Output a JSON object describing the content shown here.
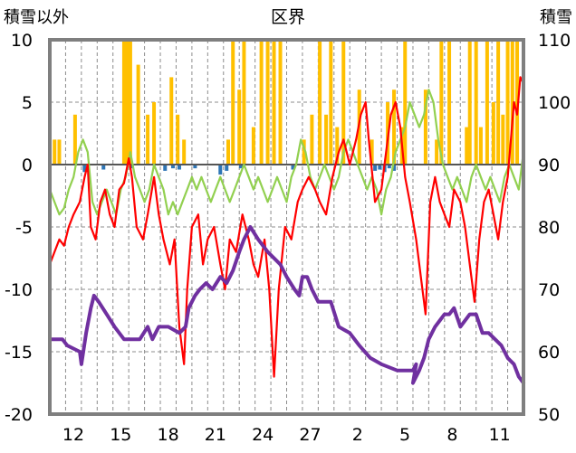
{
  "chart_data": {
    "type": "line",
    "title": "区界",
    "y_left_label": "積雪以外",
    "y_right_label": "積雪",
    "y_left_range": [
      -20,
      10
    ],
    "y_left_ticks": [
      "10",
      "5",
      "0",
      "-5",
      "-10",
      "-15",
      "-20"
    ],
    "y_right_range": [
      50,
      110
    ],
    "y_right_ticks": [
      "110",
      "100",
      "90",
      "80",
      "70",
      "60",
      "50"
    ],
    "x_range": [
      0,
      30
    ],
    "x_tick_labels": [
      "12",
      "15",
      "18",
      "21",
      "24",
      "27",
      "2",
      "5",
      "8",
      "11"
    ],
    "grid": true,
    "colors": {
      "frame": "#7f7f7f",
      "grid": "#8c8c8c",
      "precip_bar": "#ffc000",
      "negative_bar": "#2e75b6",
      "temperature_max": "#ff0000",
      "temperature_min": "#92d050",
      "snow_depth": "#7030a0"
    },
    "series": [
      {
        "key": "snow_depth",
        "axis": "right",
        "points": [
          [
            0,
            62
          ],
          [
            0.8,
            62
          ],
          [
            1.1,
            61
          ],
          [
            1.9,
            60
          ],
          [
            2,
            58
          ],
          [
            2.3,
            63
          ],
          [
            2.6,
            67
          ],
          [
            2.8,
            69
          ],
          [
            3.1,
            68
          ],
          [
            3.6,
            66
          ],
          [
            4.1,
            64
          ],
          [
            4.7,
            62
          ],
          [
            5.7,
            62
          ],
          [
            6.2,
            64
          ],
          [
            6.5,
            62
          ],
          [
            6.9,
            64
          ],
          [
            7.5,
            64
          ],
          [
            8.2,
            63
          ],
          [
            8.6,
            64
          ],
          [
            8.8,
            67
          ],
          [
            9.2,
            69
          ],
          [
            9.5,
            70
          ],
          [
            9.9,
            71
          ],
          [
            10.3,
            70
          ],
          [
            10.8,
            72
          ],
          [
            11.2,
            71
          ],
          [
            11.6,
            73
          ],
          [
            12,
            76
          ],
          [
            12.3,
            78
          ],
          [
            12.7,
            80
          ],
          [
            13.2,
            78
          ],
          [
            13.8,
            76
          ],
          [
            14.6,
            74
          ],
          [
            15,
            72
          ],
          [
            15.5,
            70
          ],
          [
            15.8,
            69
          ],
          [
            16,
            72
          ],
          [
            16.3,
            72
          ],
          [
            16.6,
            70
          ],
          [
            17,
            68
          ],
          [
            17.8,
            68
          ],
          [
            18.3,
            64
          ],
          [
            19,
            63
          ],
          [
            19.6,
            61
          ],
          [
            20.3,
            59
          ],
          [
            21,
            58
          ],
          [
            22,
            57
          ],
          [
            23,
            57
          ],
          [
            23.2,
            58
          ],
          [
            23,
            55
          ],
          [
            23.4,
            57
          ],
          [
            23.7,
            59
          ],
          [
            24,
            62
          ],
          [
            24.4,
            64
          ],
          [
            24.7,
            65
          ],
          [
            25,
            66
          ],
          [
            25.3,
            66
          ],
          [
            25.6,
            67
          ],
          [
            26,
            64
          ],
          [
            26.6,
            66
          ],
          [
            27,
            66
          ],
          [
            27.4,
            63
          ],
          [
            27.8,
            63
          ],
          [
            28.2,
            62
          ],
          [
            28.6,
            61
          ],
          [
            29,
            59
          ],
          [
            29.4,
            58
          ],
          [
            29.7,
            56
          ],
          [
            30,
            55
          ]
        ]
      },
      {
        "key": "temperature_max",
        "axis": "left",
        "points": [
          [
            0,
            -8
          ],
          [
            0.3,
            -7
          ],
          [
            0.6,
            -6
          ],
          [
            0.9,
            -6.5
          ],
          [
            1.2,
            -5
          ],
          [
            1.5,
            -4
          ],
          [
            1.9,
            -3
          ],
          [
            2.2,
            -1
          ],
          [
            2.4,
            0
          ],
          [
            2.6,
            -5
          ],
          [
            2.9,
            -6
          ],
          [
            3.2,
            -3
          ],
          [
            3.5,
            -2
          ],
          [
            3.8,
            -4
          ],
          [
            4.1,
            -5
          ],
          [
            4.4,
            -2
          ],
          [
            4.7,
            -1.5
          ],
          [
            5,
            0.5
          ],
          [
            5.2,
            -1
          ],
          [
            5.5,
            -5
          ],
          [
            5.9,
            -6
          ],
          [
            6.2,
            -4
          ],
          [
            6.6,
            -1
          ],
          [
            6.9,
            -4
          ],
          [
            7.2,
            -6
          ],
          [
            7.6,
            -8
          ],
          [
            7.9,
            -6
          ],
          [
            8.2,
            -13
          ],
          [
            8.5,
            -16
          ],
          [
            8.7,
            -10
          ],
          [
            9,
            -5
          ],
          [
            9.4,
            -4
          ],
          [
            9.7,
            -8
          ],
          [
            10,
            -6
          ],
          [
            10.4,
            -5
          ],
          [
            10.8,
            -8
          ],
          [
            11.1,
            -10
          ],
          [
            11.4,
            -6
          ],
          [
            11.8,
            -7
          ],
          [
            12.2,
            -4
          ],
          [
            12.6,
            -6
          ],
          [
            12.9,
            -8
          ],
          [
            13.2,
            -9
          ],
          [
            13.6,
            -6
          ],
          [
            13.9,
            -10
          ],
          [
            14.2,
            -17
          ],
          [
            14.5,
            -10
          ],
          [
            14.9,
            -5
          ],
          [
            15.3,
            -6
          ],
          [
            15.7,
            -3
          ],
          [
            16,
            -2
          ],
          [
            16.4,
            -1
          ],
          [
            16.8,
            -2
          ],
          [
            17.1,
            -3
          ],
          [
            17.5,
            -4
          ],
          [
            17.9,
            -1
          ],
          [
            18.3,
            1
          ],
          [
            18.6,
            2
          ],
          [
            19,
            0
          ],
          [
            19.4,
            2
          ],
          [
            19.7,
            4
          ],
          [
            20,
            5
          ],
          [
            20.2,
            2
          ],
          [
            20.6,
            -3
          ],
          [
            21,
            -2
          ],
          [
            21.3,
            1
          ],
          [
            21.6,
            4
          ],
          [
            21.9,
            5
          ],
          [
            22.2,
            3
          ],
          [
            22.5,
            -1
          ],
          [
            22.8,
            -3
          ],
          [
            23.2,
            -6
          ],
          [
            23.5,
            -9
          ],
          [
            23.8,
            -12
          ],
          [
            24.1,
            -3
          ],
          [
            24.4,
            -1
          ],
          [
            24.7,
            -3
          ],
          [
            25,
            -4
          ],
          [
            25.3,
            -5
          ],
          [
            25.6,
            -2
          ],
          [
            26,
            -3
          ],
          [
            26.3,
            -5
          ],
          [
            26.6,
            -8
          ],
          [
            26.9,
            -11
          ],
          [
            27.2,
            -6
          ],
          [
            27.5,
            -3
          ],
          [
            27.8,
            -2
          ],
          [
            28.1,
            -4
          ],
          [
            28.4,
            -6
          ],
          [
            28.7,
            -3
          ],
          [
            29,
            -1
          ],
          [
            29.2,
            2
          ],
          [
            29.4,
            5
          ],
          [
            29.6,
            4
          ],
          [
            29.8,
            7
          ],
          [
            30,
            6.5
          ]
        ]
      },
      {
        "key": "temperature_min",
        "axis": "left",
        "points": [
          [
            0,
            -2
          ],
          [
            0.3,
            -3
          ],
          [
            0.6,
            -4
          ],
          [
            0.9,
            -3.5
          ],
          [
            1.2,
            -2
          ],
          [
            1.5,
            -1
          ],
          [
            1.8,
            1
          ],
          [
            2.1,
            2
          ],
          [
            2.4,
            1
          ],
          [
            2.7,
            -3
          ],
          [
            3,
            -4
          ],
          [
            3.3,
            -3
          ],
          [
            3.6,
            -2
          ],
          [
            3.9,
            -3
          ],
          [
            4.2,
            -4
          ],
          [
            4.5,
            -2
          ],
          [
            4.8,
            -1
          ],
          [
            5.1,
            1
          ],
          [
            5.4,
            -1
          ],
          [
            5.7,
            -2
          ],
          [
            6,
            -3
          ],
          [
            6.3,
            -2
          ],
          [
            6.6,
            0
          ],
          [
            6.9,
            -1
          ],
          [
            7.2,
            -2
          ],
          [
            7.5,
            -4
          ],
          [
            7.8,
            -3
          ],
          [
            8.1,
            -4
          ],
          [
            8.4,
            -3
          ],
          [
            8.7,
            -2
          ],
          [
            9,
            -1
          ],
          [
            9.3,
            -2
          ],
          [
            9.6,
            -1
          ],
          [
            9.9,
            -2
          ],
          [
            10.2,
            -3
          ],
          [
            10.5,
            -2
          ],
          [
            10.8,
            -1
          ],
          [
            11.1,
            -2
          ],
          [
            11.4,
            -3
          ],
          [
            11.7,
            -2
          ],
          [
            12,
            -1
          ],
          [
            12.3,
            0
          ],
          [
            12.6,
            -1
          ],
          [
            12.9,
            -2
          ],
          [
            13.2,
            -1
          ],
          [
            13.5,
            -2
          ],
          [
            13.8,
            -3
          ],
          [
            14.1,
            -2
          ],
          [
            14.4,
            -1
          ],
          [
            14.7,
            -2
          ],
          [
            15,
            -3
          ],
          [
            15.3,
            -1
          ],
          [
            15.6,
            0
          ],
          [
            15.9,
            2
          ],
          [
            16.2,
            1
          ],
          [
            16.5,
            -1
          ],
          [
            16.8,
            -2
          ],
          [
            17.1,
            -1
          ],
          [
            17.4,
            0
          ],
          [
            17.7,
            -1
          ],
          [
            18,
            -2
          ],
          [
            18.3,
            -1
          ],
          [
            18.6,
            1
          ],
          [
            18.9,
            2
          ],
          [
            19.2,
            1
          ],
          [
            19.5,
            0
          ],
          [
            19.8,
            -1
          ],
          [
            20.1,
            -2
          ],
          [
            20.4,
            -1
          ],
          [
            20.7,
            -2
          ],
          [
            21,
            -4
          ],
          [
            21.3,
            -2
          ],
          [
            21.6,
            -1
          ],
          [
            21.9,
            1
          ],
          [
            22.2,
            2
          ],
          [
            22.5,
            3
          ],
          [
            22.8,
            5
          ],
          [
            23.1,
            4
          ],
          [
            23.4,
            3
          ],
          [
            23.7,
            4
          ],
          [
            24,
            6
          ],
          [
            24.3,
            5
          ],
          [
            24.6,
            2
          ],
          [
            24.9,
            0
          ],
          [
            25.2,
            -1
          ],
          [
            25.5,
            -2
          ],
          [
            25.8,
            -1
          ],
          [
            26.1,
            -2
          ],
          [
            26.4,
            -3
          ],
          [
            26.7,
            -1
          ],
          [
            27,
            0
          ],
          [
            27.3,
            -1
          ],
          [
            27.6,
            -2
          ],
          [
            27.9,
            -1
          ],
          [
            28.2,
            -2
          ],
          [
            28.5,
            -3
          ],
          [
            28.8,
            -1
          ],
          [
            29.1,
            0
          ],
          [
            29.4,
            -1
          ],
          [
            29.7,
            -2
          ],
          [
            30,
            1
          ]
        ]
      }
    ],
    "precip_bars": {
      "axis": "left",
      "x": [
        0.3,
        0.6,
        1.6,
        4.7,
        4.9,
        5.1,
        5.6,
        6.2,
        6.6,
        7.7,
        8.1,
        8.5,
        11.3,
        11.6,
        12,
        12.3,
        12.9,
        13.4,
        13.8,
        14.2,
        14.6,
        16.1,
        16.6,
        17.1,
        17.5,
        17.8,
        18.2,
        18.6,
        19.6,
        20.4,
        21.4,
        21.8,
        22.3,
        22.5,
        23.8,
        24.5,
        24.8,
        25.3,
        26.4,
        26.6,
        27,
        27.3,
        27.7,
        28.1,
        28.4,
        28.7,
        29,
        29.3,
        29.6
      ],
      "values": [
        2,
        2,
        4,
        10,
        10,
        10,
        8,
        4,
        5,
        7,
        4,
        2,
        2,
        10,
        6,
        10,
        3,
        10,
        10,
        10,
        10,
        2,
        4,
        10,
        4,
        10,
        3,
        10,
        6,
        2,
        5,
        6,
        3,
        10,
        6,
        2,
        10,
        10,
        3,
        10,
        10,
        3,
        10,
        5,
        10,
        4,
        10,
        10,
        10
      ]
    },
    "negative_bars": {
      "axis": "left",
      "x": [
        2.2,
        3.4,
        5.2,
        7.3,
        7.8,
        8.2,
        9.2,
        10.8,
        11.2,
        12.1,
        15.4,
        20.6,
        20.9,
        21.2,
        21.5,
        21.8
      ],
      "values": [
        -0.6,
        -0.4,
        -0.3,
        -0.5,
        -0.3,
        -0.4,
        -0.3,
        -0.8,
        -0.5,
        -0.3,
        -0.4,
        -0.5,
        -0.4,
        -0.6,
        -0.3,
        -0.5
      ]
    }
  }
}
